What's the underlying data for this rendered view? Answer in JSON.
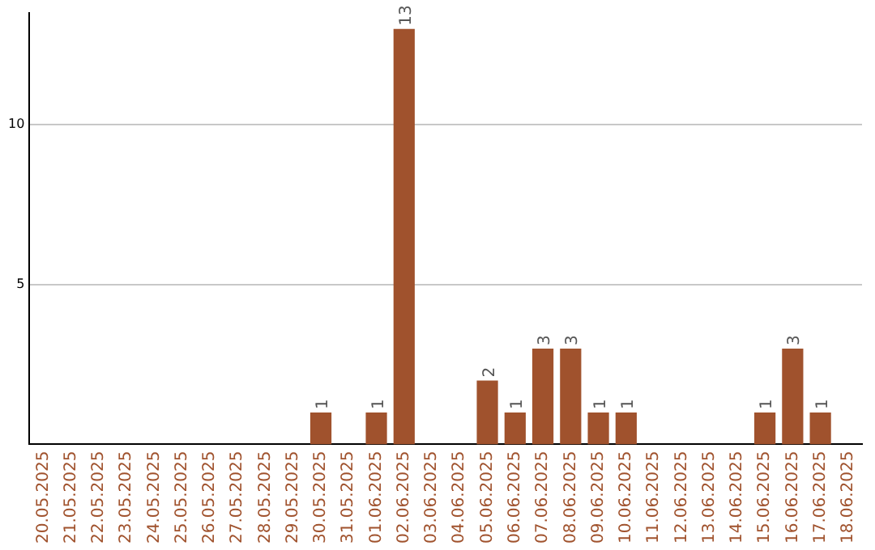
{
  "chart_data": {
    "type": "bar",
    "categories": [
      "20.05.2025",
      "21.05.2025",
      "22.05.2025",
      "23.05.2025",
      "24.05.2025",
      "25.05.2025",
      "26.05.2025",
      "27.05.2025",
      "28.05.2025",
      "29.05.2025",
      "30.05.2025",
      "31.05.2025",
      "01.06.2025",
      "02.06.2025",
      "03.06.2025",
      "04.06.2025",
      "05.06.2025",
      "06.06.2025",
      "07.06.2025",
      "08.06.2025",
      "09.06.2025",
      "10.06.2025",
      "11.06.2025",
      "12.06.2025",
      "13.06.2025",
      "14.06.2025",
      "15.06.2025",
      "16.06.2025",
      "17.06.2025",
      "18.06.2025"
    ],
    "values": [
      0,
      0,
      0,
      0,
      0,
      0,
      0,
      0,
      0,
      0,
      1,
      0,
      1,
      13,
      0,
      0,
      2,
      1,
      3,
      3,
      1,
      1,
      0,
      0,
      0,
      0,
      1,
      3,
      1,
      0
    ],
    "value_labels": [
      null,
      null,
      null,
      null,
      null,
      null,
      null,
      null,
      null,
      null,
      "1",
      null,
      "1",
      "13",
      null,
      null,
      "2",
      "1",
      "3",
      "3",
      "1",
      "1",
      null,
      null,
      null,
      null,
      "1",
      "3",
      "1",
      null
    ],
    "color": "#a0522d",
    "ylim": [
      0,
      13.5
    ],
    "yticks": [
      5,
      10
    ],
    "grid": "y"
  }
}
